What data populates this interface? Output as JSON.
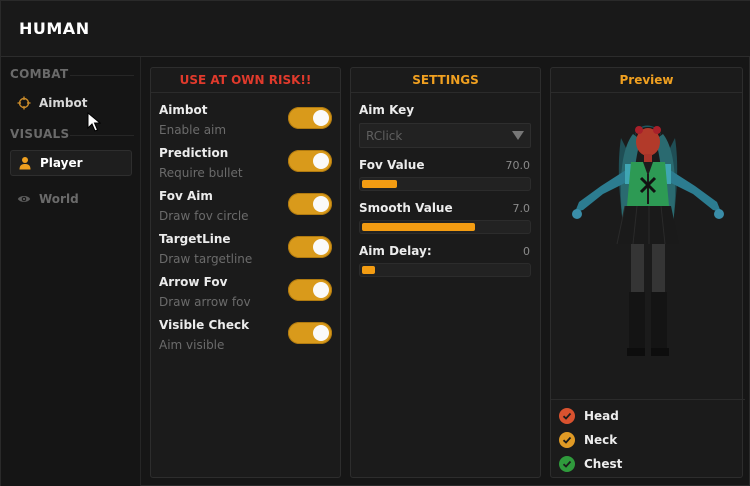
{
  "window": {
    "title": "HUMAN"
  },
  "sidebar": {
    "sections": [
      {
        "label": "COMBAT",
        "items": [
          {
            "label": "Aimbot",
            "icon": "crosshair-icon",
            "state": "default"
          }
        ]
      },
      {
        "label": "VISUALS",
        "items": [
          {
            "label": "Player",
            "icon": "person-icon",
            "state": "active"
          },
          {
            "label": "World",
            "icon": "eye-icon",
            "state": "disabled"
          }
        ]
      }
    ]
  },
  "risk_panel": {
    "header": "USE AT OWN RISK!!",
    "toggles": [
      {
        "title": "Aimbot",
        "subtitle": "Enable aim",
        "on": true
      },
      {
        "title": "Prediction",
        "subtitle": "Require bullet",
        "on": true
      },
      {
        "title": "Fov Aim",
        "subtitle": "Draw fov circle",
        "on": true
      },
      {
        "title": "TargetLine",
        "subtitle": "Draw targetline",
        "on": true
      },
      {
        "title": "Arrow Fov",
        "subtitle": "Draw arrow fov",
        "on": true
      },
      {
        "title": "Visible Check",
        "subtitle": "Aim visible",
        "on": true
      }
    ]
  },
  "settings_panel": {
    "header": "SETTINGS",
    "aim_key": {
      "label": "Aim Key",
      "value": "RClick"
    },
    "sliders": [
      {
        "label": "Fov Value",
        "value_text": "70.0",
        "fraction": 0.21
      },
      {
        "label": "Smooth Value",
        "value_text": "7.0",
        "fraction": 0.67
      },
      {
        "label": "Aim Delay:",
        "value_text": "0",
        "fraction": 0.08
      }
    ]
  },
  "preview_panel": {
    "header": "Preview",
    "hitboxes": [
      {
        "label": "Head",
        "color": "#d9522f",
        "checked": true
      },
      {
        "label": "Neck",
        "color": "#e09a25",
        "checked": true
      },
      {
        "label": "Chest",
        "color": "#2f9a3c",
        "checked": true
      }
    ]
  },
  "colors": {
    "accent_orange": "#f39c12",
    "toggle_on": "#d99a1b",
    "risk_red": "#e03a2c"
  }
}
